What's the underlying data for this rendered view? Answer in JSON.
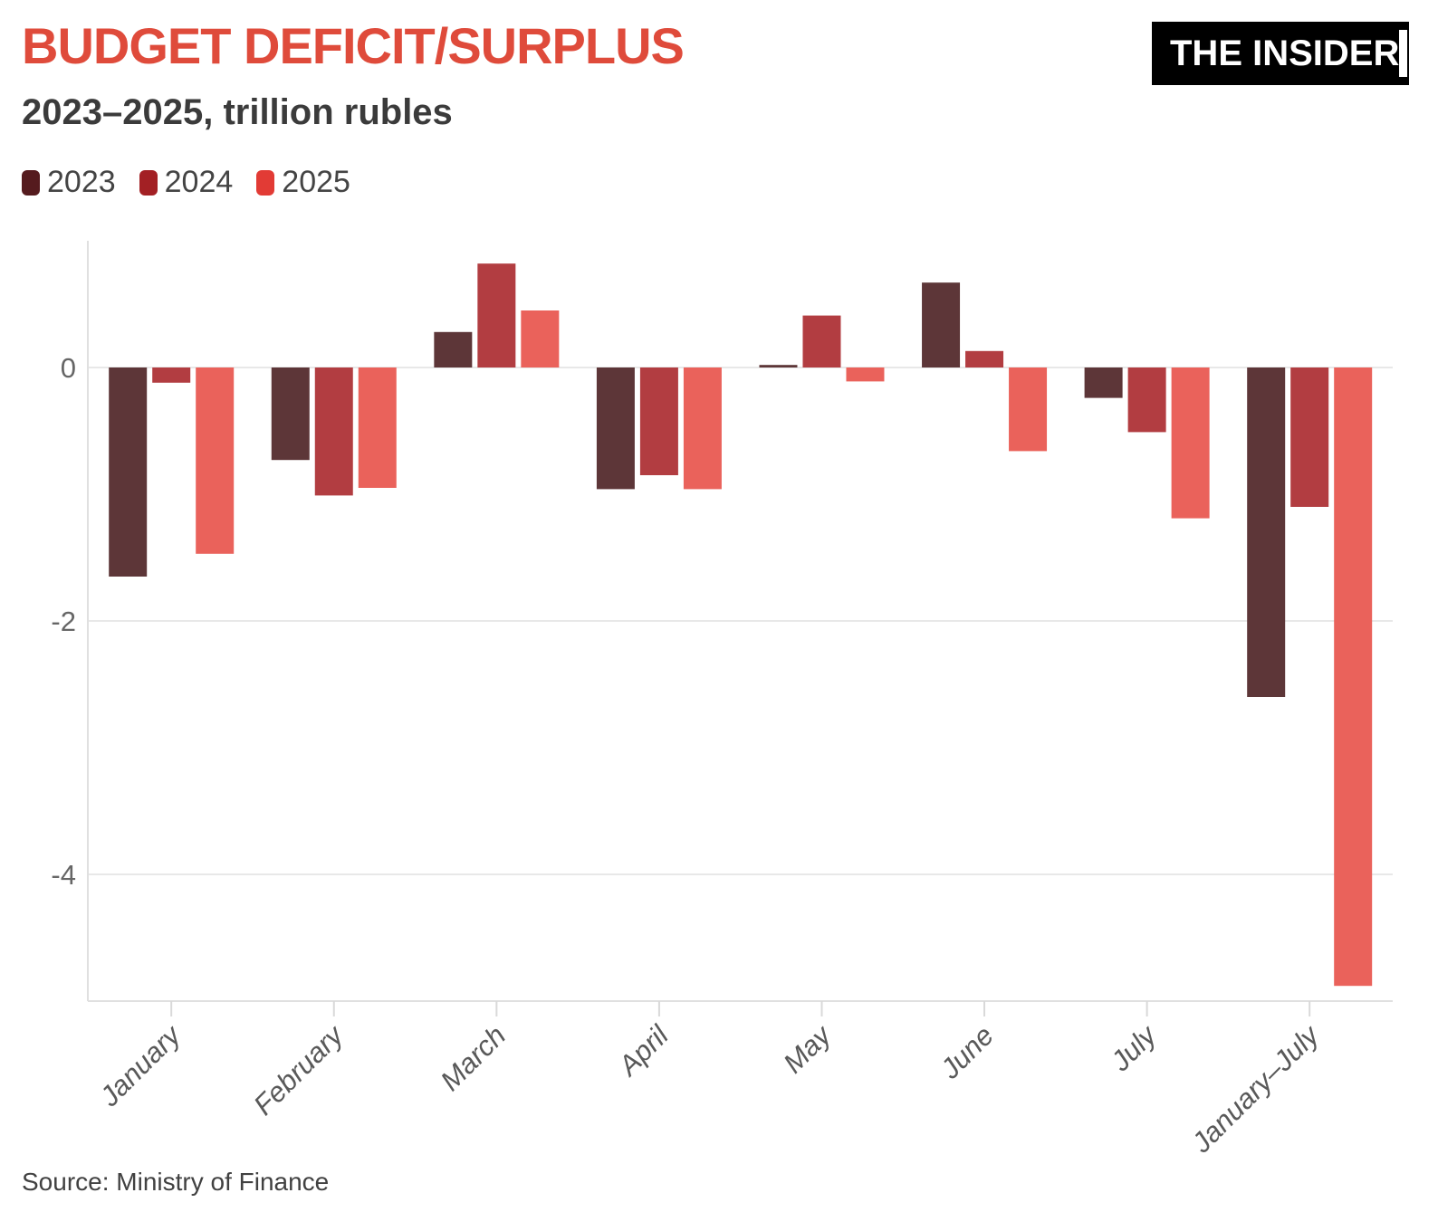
{
  "header": {
    "title": "BUDGET DEFICIT/SURPLUS",
    "subtitle": "2023–2025, trillion rubles",
    "title_color": "#df4b3b",
    "subtitle_color": "#3b3b3b"
  },
  "logo": {
    "text": "THE INSIDER",
    "background": "#000000",
    "foreground": "#ffffff"
  },
  "source": {
    "text": "Source: Ministry of Finance"
  },
  "chart_data": {
    "type": "bar",
    "title": "BUDGET DEFICIT/SURPLUS",
    "subtitle": "2023–2025, trillion rubles",
    "unit": "trillion rubles",
    "categories": [
      "January",
      "February",
      "March",
      "April",
      "May",
      "June",
      "July",
      "January–July"
    ],
    "series": [
      {
        "name": "2023",
        "bar_color": "#5d3638",
        "swatch_color": "#551b1e",
        "values": [
          -1.65,
          -0.73,
          0.28,
          -0.96,
          0.02,
          0.67,
          -0.24,
          -2.6
        ]
      },
      {
        "name": "2024",
        "bar_color": "#b23d41",
        "swatch_color": "#a32024",
        "values": [
          -0.12,
          -1.01,
          0.82,
          -0.85,
          0.41,
          0.13,
          -0.51,
          -1.1
        ]
      },
      {
        "name": "2025",
        "bar_color": "#ea625b",
        "swatch_color": "#e23b35",
        "values": [
          -1.47,
          -0.95,
          0.45,
          -0.96,
          -0.11,
          -0.66,
          -1.19,
          -4.88
        ]
      }
    ],
    "xlabel": "",
    "ylabel": "",
    "yticks": [
      0,
      -2,
      -4
    ],
    "ylim": [
      -5,
      1
    ],
    "grid": true,
    "legend_position": "top-left",
    "colors": {
      "gridline": "#e8e8e8",
      "axis_border": "#e0e0e0",
      "tick": "#d9d9d9",
      "y_tick_label": "#666666",
      "x_tick_label": "#595959"
    }
  }
}
